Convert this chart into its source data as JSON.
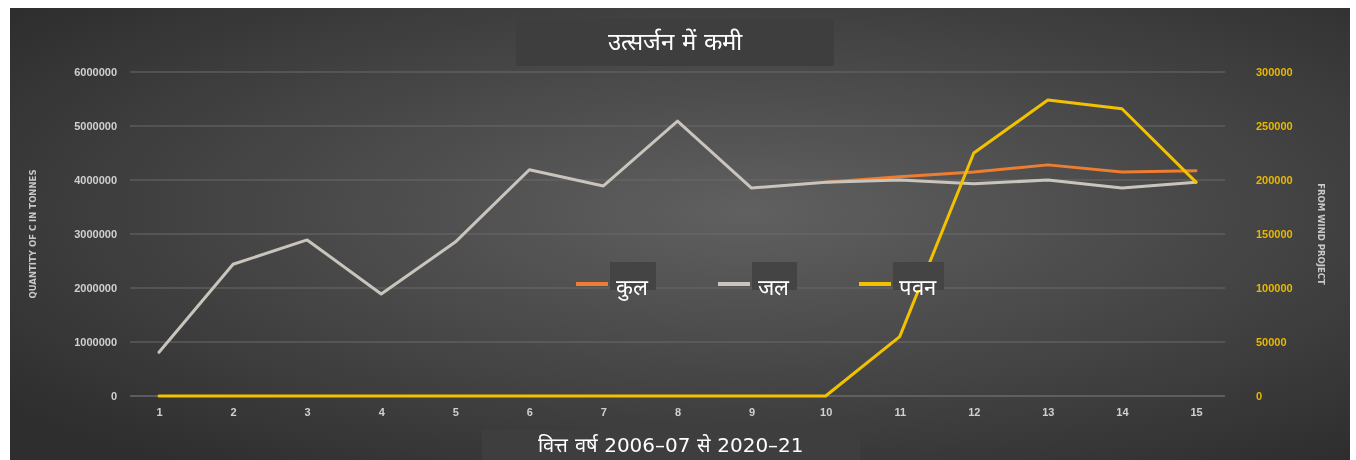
{
  "chart_data": {
    "type": "line",
    "title": "उत्सर्जन में कमी",
    "xlabel": "वित्त वर्ष 2006–07 से 2020–21",
    "ylabel": "QUANTITY OF C IN TONNES",
    "y2label": "FROM WIND PROJECT",
    "categories": [
      "1",
      "2",
      "3",
      "4",
      "5",
      "6",
      "7",
      "8",
      "9",
      "10",
      "11",
      "12",
      "13",
      "14",
      "15"
    ],
    "series": [
      {
        "name": "कुल",
        "color": "#ed7d31",
        "values": [
          null,
          null,
          null,
          null,
          null,
          null,
          null,
          null,
          null,
          3960000,
          4060000,
          4150000,
          4280000,
          4150000,
          4170000
        ]
      },
      {
        "name": "जल",
        "color": "#c9c5bd",
        "values": [
          810000,
          2440000,
          2890000,
          1890000,
          2850000,
          4190000,
          3890000,
          5090000,
          3850000,
          3960000,
          4000000,
          3930000,
          4000000,
          3850000,
          3960000
        ]
      },
      {
        "name": "पवन",
        "color": "#f2c200",
        "axis": "y2",
        "values": [
          0,
          0,
          0,
          0,
          0,
          0,
          0,
          0,
          0,
          0,
          55000,
          225000,
          274000,
          266000,
          198000
        ]
      }
    ],
    "ylim": [
      0,
      6000000
    ],
    "yticks": [
      0,
      1000000,
      2000000,
      3000000,
      4000000,
      5000000,
      6000000
    ],
    "y2lim": [
      0,
      300000
    ],
    "y2ticks": [
      0,
      50000,
      100000,
      150000,
      200000,
      250000,
      300000
    ],
    "grid": "y",
    "legend": "center",
    "marker": "none",
    "line_style": "solid"
  }
}
